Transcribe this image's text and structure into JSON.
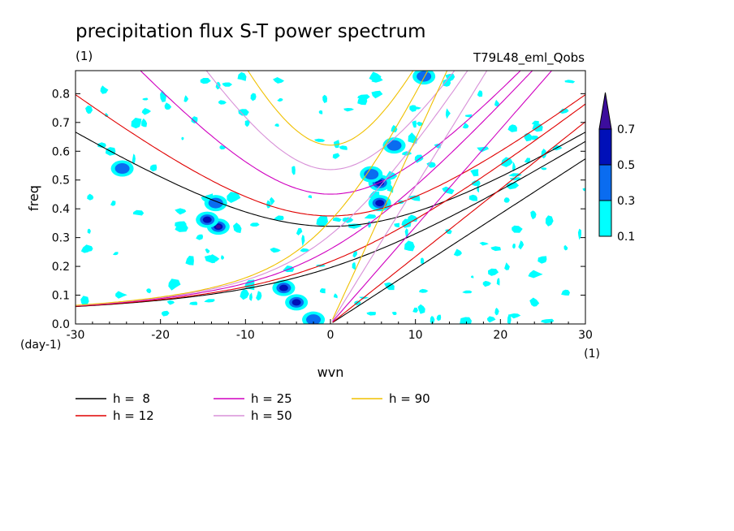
{
  "header": {
    "title": "precipitation flux S-T power spectrum",
    "subtitle_left": "(1)",
    "subtitle_right": "T79L48_eml_Qobs"
  },
  "chart_data": {
    "type": "heatmap",
    "xlabel": "wvn",
    "ylabel": "freq",
    "x_unit": "(1)",
    "y_unit": "(day-1)",
    "xlim": [
      -30,
      30
    ],
    "ylim": [
      0,
      0.88
    ],
    "x_ticks": [
      -30,
      -20,
      -10,
      0,
      10,
      20,
      30
    ],
    "x_tick_labels": [
      "-30",
      "-20",
      "-10",
      "0",
      "10",
      "20",
      "30"
    ],
    "y_ticks": [
      0.0,
      0.1,
      0.2,
      0.3,
      0.4,
      0.5,
      0.6,
      0.7,
      0.8
    ],
    "y_tick_labels": [
      "0.0",
      "0.1",
      "0.2",
      "0.3",
      "0.4",
      "0.5",
      "0.6",
      "0.7",
      "0.8"
    ],
    "colorbar": {
      "levels": [
        0.1,
        0.3,
        0.5,
        0.7
      ],
      "labels": [
        "0.1",
        "0.3",
        "0.5",
        "0.7"
      ],
      "colors": [
        "#00ffff",
        "#0a6cf0",
        "#0010b8",
        "#3c0d9c"
      ]
    },
    "contour_blobs": [
      {
        "x": -13.2,
        "y": 0.338,
        "level": 3
      },
      {
        "x": -14.5,
        "y": 0.362,
        "level": 2
      },
      {
        "x": -5.5,
        "y": 0.125,
        "level": 2
      },
      {
        "x": -4.0,
        "y": 0.075,
        "level": 2
      },
      {
        "x": 5.8,
        "y": 0.49,
        "level": 2
      },
      {
        "x": 5.8,
        "y": 0.42,
        "level": 2
      },
      {
        "x": 7.5,
        "y": 0.62,
        "level": 1
      },
      {
        "x": -13.5,
        "y": 0.42,
        "level": 1
      },
      {
        "x": -2.0,
        "y": 0.015,
        "level": 1
      },
      {
        "x": -24.5,
        "y": 0.54,
        "level": 1
      },
      {
        "x": 4.8,
        "y": 0.52,
        "level": 1
      },
      {
        "x": 11.0,
        "y": 0.86,
        "level": 1
      }
    ],
    "dispersion_curves": [
      {
        "name": "h =  8",
        "color": "#000000"
      },
      {
        "name": "h = 12",
        "color": "#e00000"
      },
      {
        "name": "h = 25",
        "color": "#d000c0"
      },
      {
        "name": "h = 50",
        "color": "#d890d8"
      },
      {
        "name": "h = 90",
        "color": "#f0c000"
      }
    ],
    "legend": [
      {
        "label": "h =  8",
        "color": "#000000"
      },
      {
        "label": "h = 12",
        "color": "#e00000"
      },
      {
        "label": "h = 25",
        "color": "#d000c0"
      },
      {
        "label": "h = 50",
        "color": "#d890d8"
      },
      {
        "label": "h = 90",
        "color": "#f0c000"
      }
    ]
  }
}
